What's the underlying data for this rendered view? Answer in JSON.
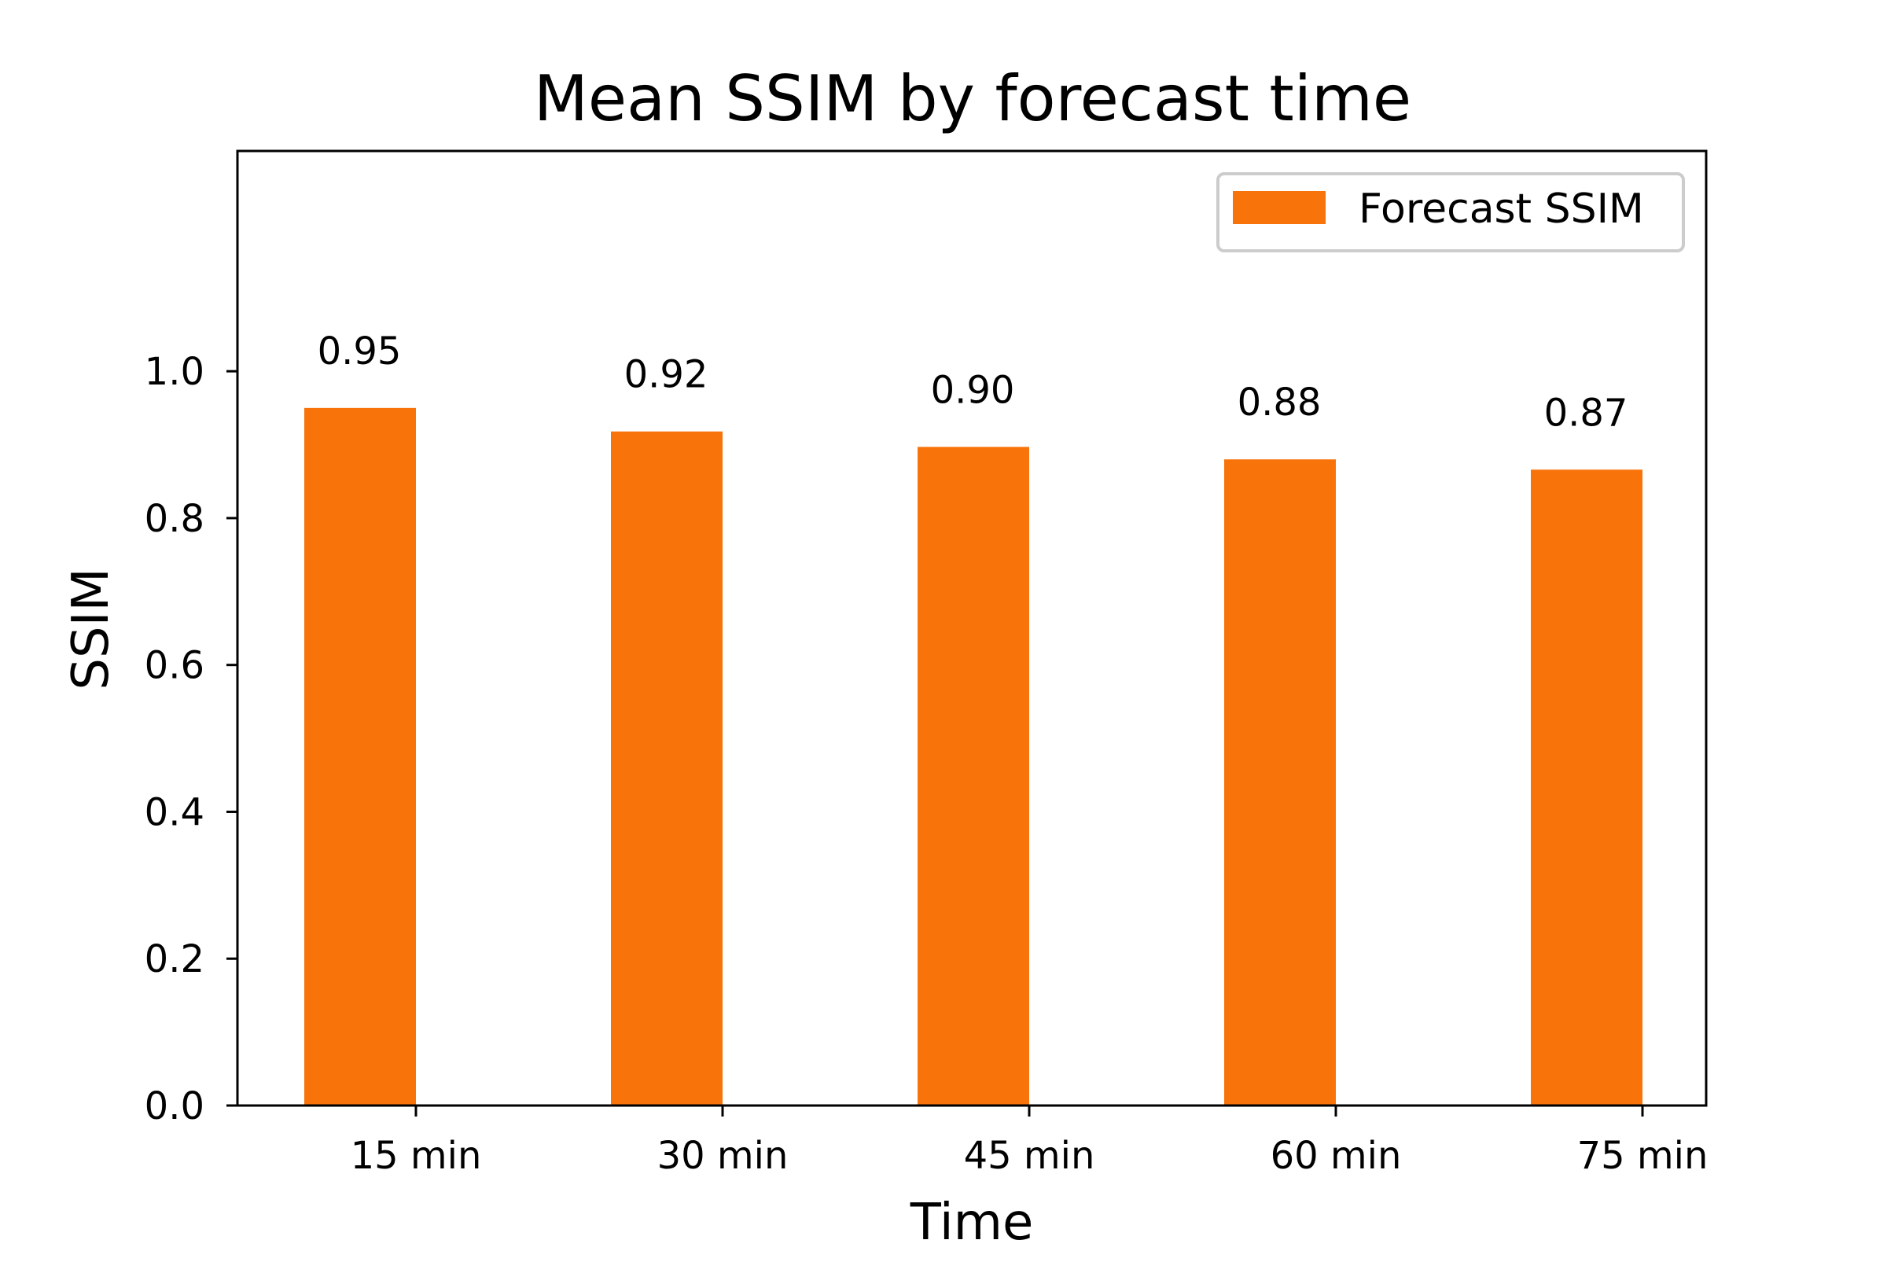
{
  "chart_data": {
    "type": "bar",
    "title": "Mean SSIM by forecast time",
    "xlabel": "Time",
    "ylabel": "SSIM",
    "categories": [
      "15 min",
      "30 min",
      "45 min",
      "60 min",
      "75 min"
    ],
    "series": [
      {
        "name": "Forecast SSIM",
        "values": [
          0.95,
          0.918,
          0.897,
          0.88,
          0.866
        ],
        "value_labels": [
          "0.95",
          "0.92",
          "0.90",
          "0.88",
          "0.87"
        ],
        "color": "#f8730a"
      }
    ],
    "ylim": [
      0,
      1.3
    ],
    "yticks": [
      0.0,
      0.2,
      0.4,
      0.6,
      0.8,
      1.0
    ],
    "ytick_labels": [
      "0.0",
      "0.2",
      "0.4",
      "0.6",
      "0.8",
      "1.0"
    ],
    "grid": false,
    "legend_position": "top-right"
  }
}
